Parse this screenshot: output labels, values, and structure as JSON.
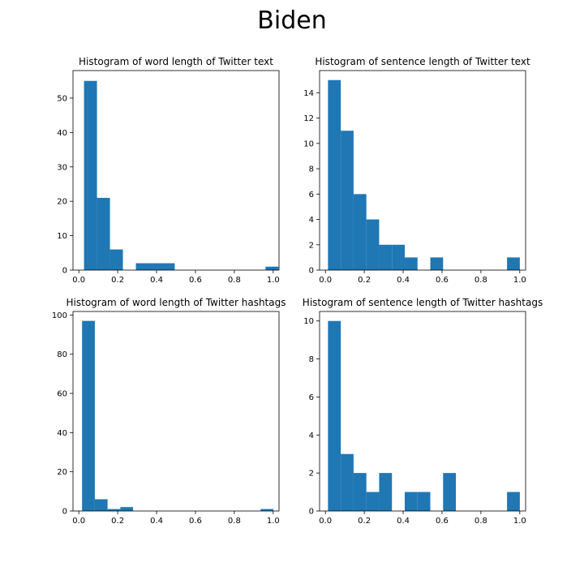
{
  "figure": {
    "title": "Biden"
  },
  "bar_color": "#1f77b4",
  "chart_data": [
    {
      "type": "bar",
      "title": "Histogram of word length of Twitter text",
      "xlabel": "",
      "ylabel": "",
      "xlim": [
        -0.03,
        1.03
      ],
      "ylim": [
        0,
        58
      ],
      "xticks": [
        0.0,
        0.2,
        0.4,
        0.6,
        0.8,
        1.0
      ],
      "xtick_labels": [
        "0.0",
        "0.2",
        "0.4",
        "0.6",
        "0.8",
        "1.0"
      ],
      "yticks": [
        0,
        10,
        20,
        30,
        40,
        50
      ],
      "ytick_labels": [
        "0",
        "10",
        "20",
        "30",
        "40",
        "50"
      ],
      "bin_start": 0.0267,
      "bin_width": 0.0667,
      "values": [
        55,
        21,
        6,
        0,
        2,
        2,
        2,
        0,
        0,
        0,
        0,
        0,
        0,
        0,
        1
      ]
    },
    {
      "type": "bar",
      "title": "Histogram of sentence length of Twitter text",
      "xlabel": "",
      "ylabel": "",
      "xlim": [
        -0.03,
        1.03
      ],
      "ylim": [
        0,
        15.75
      ],
      "xticks": [
        0.0,
        0.2,
        0.4,
        0.6,
        0.8,
        1.0
      ],
      "xtick_labels": [
        "0.0",
        "0.2",
        "0.4",
        "0.6",
        "0.8",
        "1.0"
      ],
      "yticks": [
        0,
        2,
        4,
        6,
        8,
        10,
        12,
        14
      ],
      "ytick_labels": [
        "0",
        "2",
        "4",
        "6",
        "8",
        "10",
        "12",
        "14"
      ],
      "bin_start": 0.0133,
      "bin_width": 0.0658,
      "values": [
        15,
        11,
        6,
        4,
        2,
        2,
        1,
        0,
        1,
        0,
        0,
        0,
        0,
        0,
        1
      ]
    },
    {
      "type": "bar",
      "title": "Histogram of word length of Twitter hashtags",
      "xlabel": "",
      "ylabel": "",
      "xlim": [
        -0.03,
        1.03
      ],
      "ylim": [
        0,
        101.8
      ],
      "xticks": [
        0.0,
        0.2,
        0.4,
        0.6,
        0.8,
        1.0
      ],
      "xtick_labels": [
        "0.0",
        "0.2",
        "0.4",
        "0.6",
        "0.8",
        "1.0"
      ],
      "yticks": [
        0,
        20,
        40,
        60,
        80,
        100
      ],
      "ytick_labels": [
        "0",
        "20",
        "40",
        "60",
        "80",
        "100"
      ],
      "bin_start": 0.0167,
      "bin_width": 0.0656,
      "values": [
        97,
        6,
        1,
        2,
        0,
        0,
        0,
        0,
        0,
        0,
        0,
        0,
        0,
        0,
        1
      ]
    },
    {
      "type": "bar",
      "title": "Histogram of sentence length of Twitter hashtags",
      "xlabel": "",
      "ylabel": "",
      "xlim": [
        -0.03,
        1.03
      ],
      "ylim": [
        0,
        10.5
      ],
      "xticks": [
        0.0,
        0.2,
        0.4,
        0.6,
        0.8,
        1.0
      ],
      "xtick_labels": [
        "0.0",
        "0.2",
        "0.4",
        "0.6",
        "0.8",
        "1.0"
      ],
      "yticks": [
        0,
        2,
        4,
        6,
        8,
        10
      ],
      "ytick_labels": [
        "0",
        "2",
        "4",
        "6",
        "8",
        "10"
      ],
      "bin_start": 0.0133,
      "bin_width": 0.0658,
      "values": [
        10,
        3,
        2,
        1,
        2,
        0,
        1,
        1,
        0,
        2,
        0,
        0,
        0,
        0,
        1
      ]
    }
  ]
}
